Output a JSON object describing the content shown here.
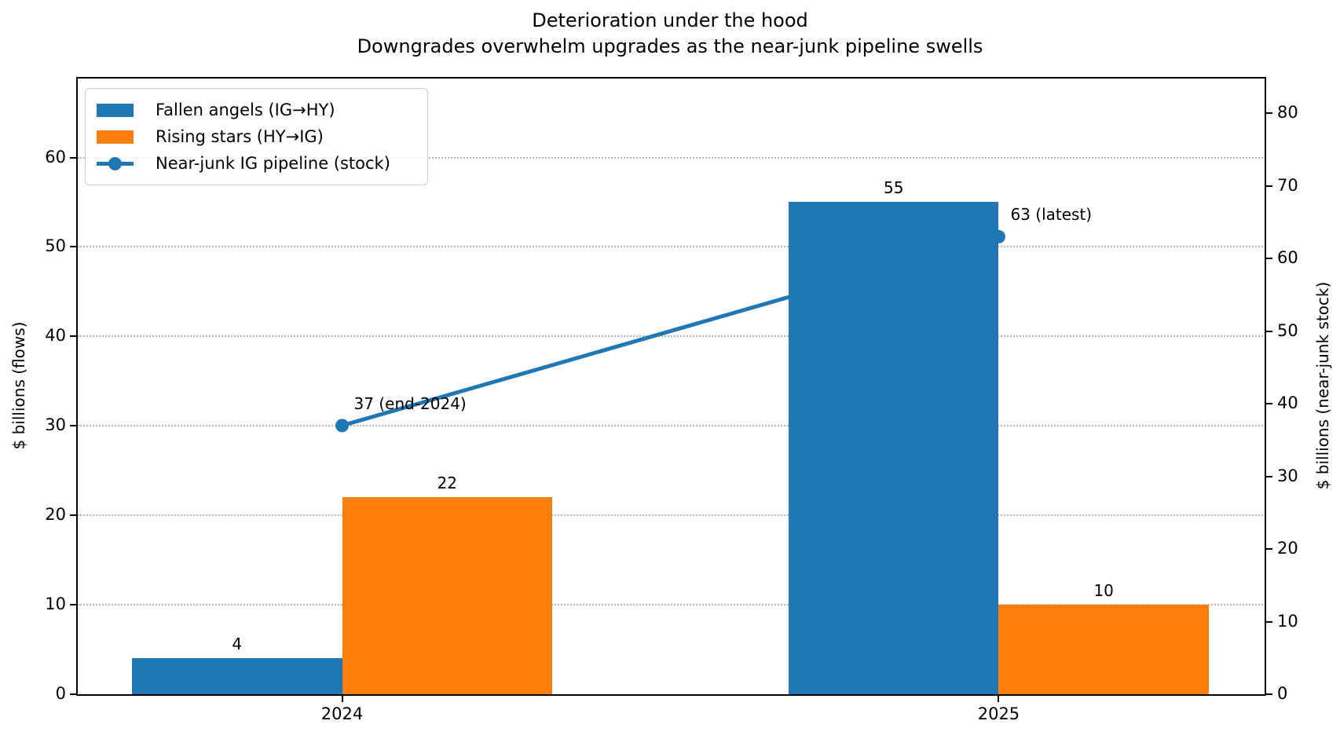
{
  "chart_data": {
    "type": "bar",
    "title": "Deterioration under the hood",
    "subtitle": "Downgrades overwhelm upgrades as the near-junk pipeline swells",
    "categories": [
      "2024",
      "2025"
    ],
    "series": [
      {
        "name": "Fallen angels (IG→HY)",
        "type": "bar",
        "axis": "left",
        "color": "#1f77b4",
        "values": [
          4,
          55
        ],
        "value_labels": [
          "4",
          "55"
        ]
      },
      {
        "name": "Rising stars (HY→IG)",
        "type": "bar",
        "axis": "left",
        "color": "#ff7f0e",
        "values": [
          22,
          10
        ],
        "value_labels": [
          "22",
          "10"
        ]
      },
      {
        "name": "Near-junk IG pipeline (stock)",
        "type": "line",
        "axis": "right",
        "color": "#1f77b4",
        "values": [
          37,
          63
        ],
        "point_labels": [
          "37 (end-2024)",
          "63 (latest)"
        ]
      }
    ],
    "axes": {
      "left": {
        "label": "$ billions (flows)",
        "min": 0,
        "max": 69,
        "ticks": [
          0,
          10,
          20,
          30,
          40,
          50,
          60
        ]
      },
      "right": {
        "label": "$ billions (near-junk stock)",
        "min": 0,
        "max": 85,
        "ticks": [
          0,
          10,
          20,
          30,
          40,
          50,
          60,
          70,
          80
        ]
      },
      "x": {
        "tick_labels": [
          "2024",
          "2025"
        ]
      }
    },
    "grid": {
      "on": true,
      "follows_axis": "left",
      "style": "dotted",
      "color": "#b6b6b6"
    },
    "legend": {
      "position": "upper-left"
    },
    "colors": {
      "bar_blue": "#1f77b4",
      "bar_orange": "#ff7f0e",
      "line_blue": "#1f77b4",
      "grid": "#b6b6b6",
      "spine": "#000000"
    }
  }
}
